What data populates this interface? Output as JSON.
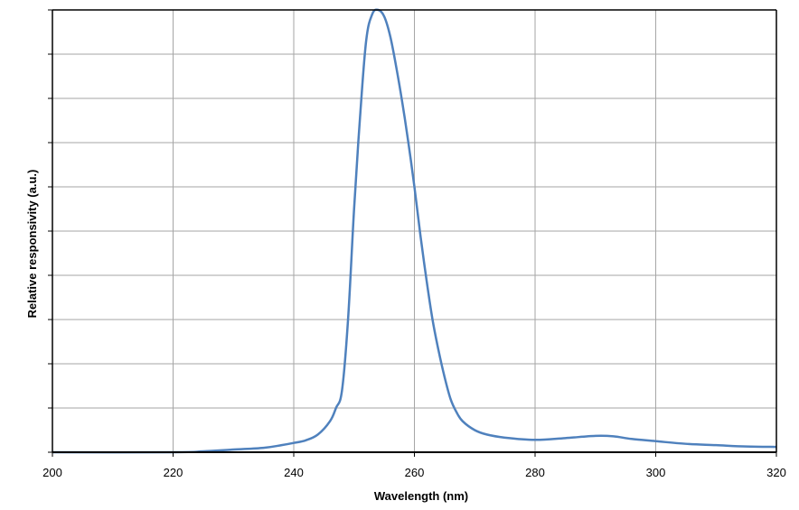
{
  "chart_data": {
    "type": "line",
    "title": "",
    "xlabel": "Wavelength (nm)",
    "ylabel": "Relative responsivity (a.u.)",
    "xlim": [
      200,
      320
    ],
    "ylim": [
      0,
      1
    ],
    "x_ticks": [
      "200",
      "220",
      "240",
      "260",
      "280",
      "300",
      "320"
    ],
    "x_tick_values": [
      200,
      220,
      240,
      260,
      280,
      300,
      320
    ],
    "y_ticks_count": 10,
    "y_tick_labels_shown": false,
    "grid": true,
    "legend": "none",
    "colors": {
      "series": "#4f81bd",
      "grid": "#a6a6a6",
      "axis": "#000000",
      "frame": "#000000"
    },
    "series": [
      {
        "x": [
          200,
          220,
          225,
          230,
          235,
          238,
          240,
          242,
          244,
          246,
          247,
          248,
          249,
          250,
          251,
          252,
          253,
          254,
          255,
          256,
          257,
          258,
          259,
          260,
          261,
          262,
          263,
          264,
          265,
          266,
          267,
          268,
          270,
          272,
          275,
          280,
          285,
          290,
          293,
          296,
          300,
          305,
          310,
          315,
          320
        ],
        "y": [
          0,
          0,
          0.002,
          0.006,
          0.01,
          0.016,
          0.021,
          0.027,
          0.04,
          0.07,
          0.1,
          0.14,
          0.3,
          0.55,
          0.76,
          0.93,
          0.99,
          1.0,
          0.985,
          0.94,
          0.87,
          0.79,
          0.7,
          0.6,
          0.49,
          0.39,
          0.3,
          0.23,
          0.17,
          0.12,
          0.09,
          0.07,
          0.05,
          0.04,
          0.033,
          0.028,
          0.032,
          0.037,
          0.036,
          0.03,
          0.025,
          0.019,
          0.016,
          0.013,
          0.012
        ]
      }
    ]
  }
}
